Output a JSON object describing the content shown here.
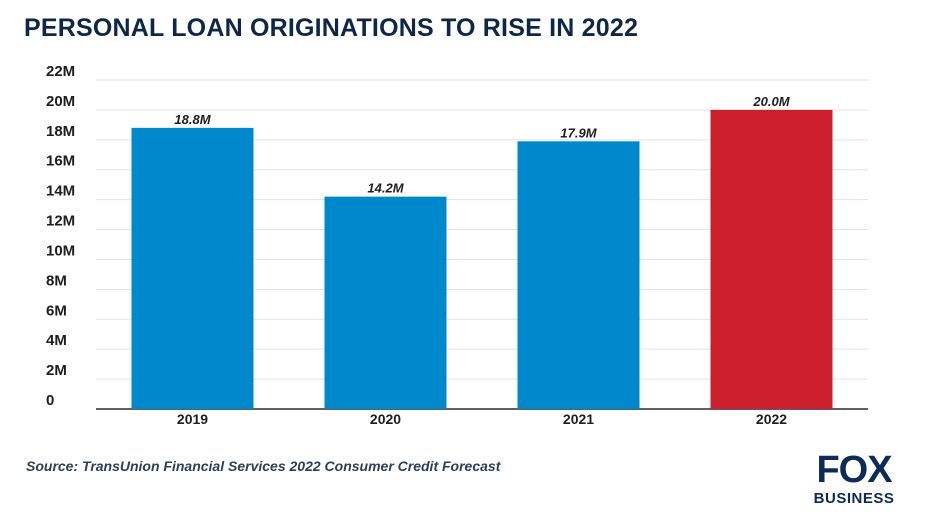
{
  "title": "PERSONAL LOAN ORIGINATIONS TO RISE IN 2022",
  "source": "Source: TransUnion Financial Services 2022 Consumer Credit Forecast",
  "logo": {
    "top": "FOX",
    "bottom": "BUSINESS"
  },
  "colors": {
    "bar": "#0088cc",
    "highlight": "#cc1f2d",
    "title": "#0f2747",
    "logo": "#0d2a5a"
  },
  "chart_data": {
    "type": "bar",
    "categories": [
      "2019",
      "2020",
      "2021",
      "2022"
    ],
    "values": [
      18.8,
      14.2,
      17.9,
      20.0
    ],
    "data_labels": [
      "18.8M",
      "14.2M",
      "17.9M",
      "20.0M"
    ],
    "highlight_index": 3,
    "y_ticks": [
      0,
      2,
      4,
      6,
      8,
      10,
      12,
      14,
      16,
      18,
      20,
      22
    ],
    "y_tick_labels": [
      "0",
      "2M",
      "4M",
      "6M",
      "8M",
      "10M",
      "12M",
      "14M",
      "16M",
      "18M",
      "20M",
      "22M"
    ],
    "ylim": [
      0,
      22
    ],
    "grid": true,
    "xlabel": "",
    "ylabel": ""
  }
}
